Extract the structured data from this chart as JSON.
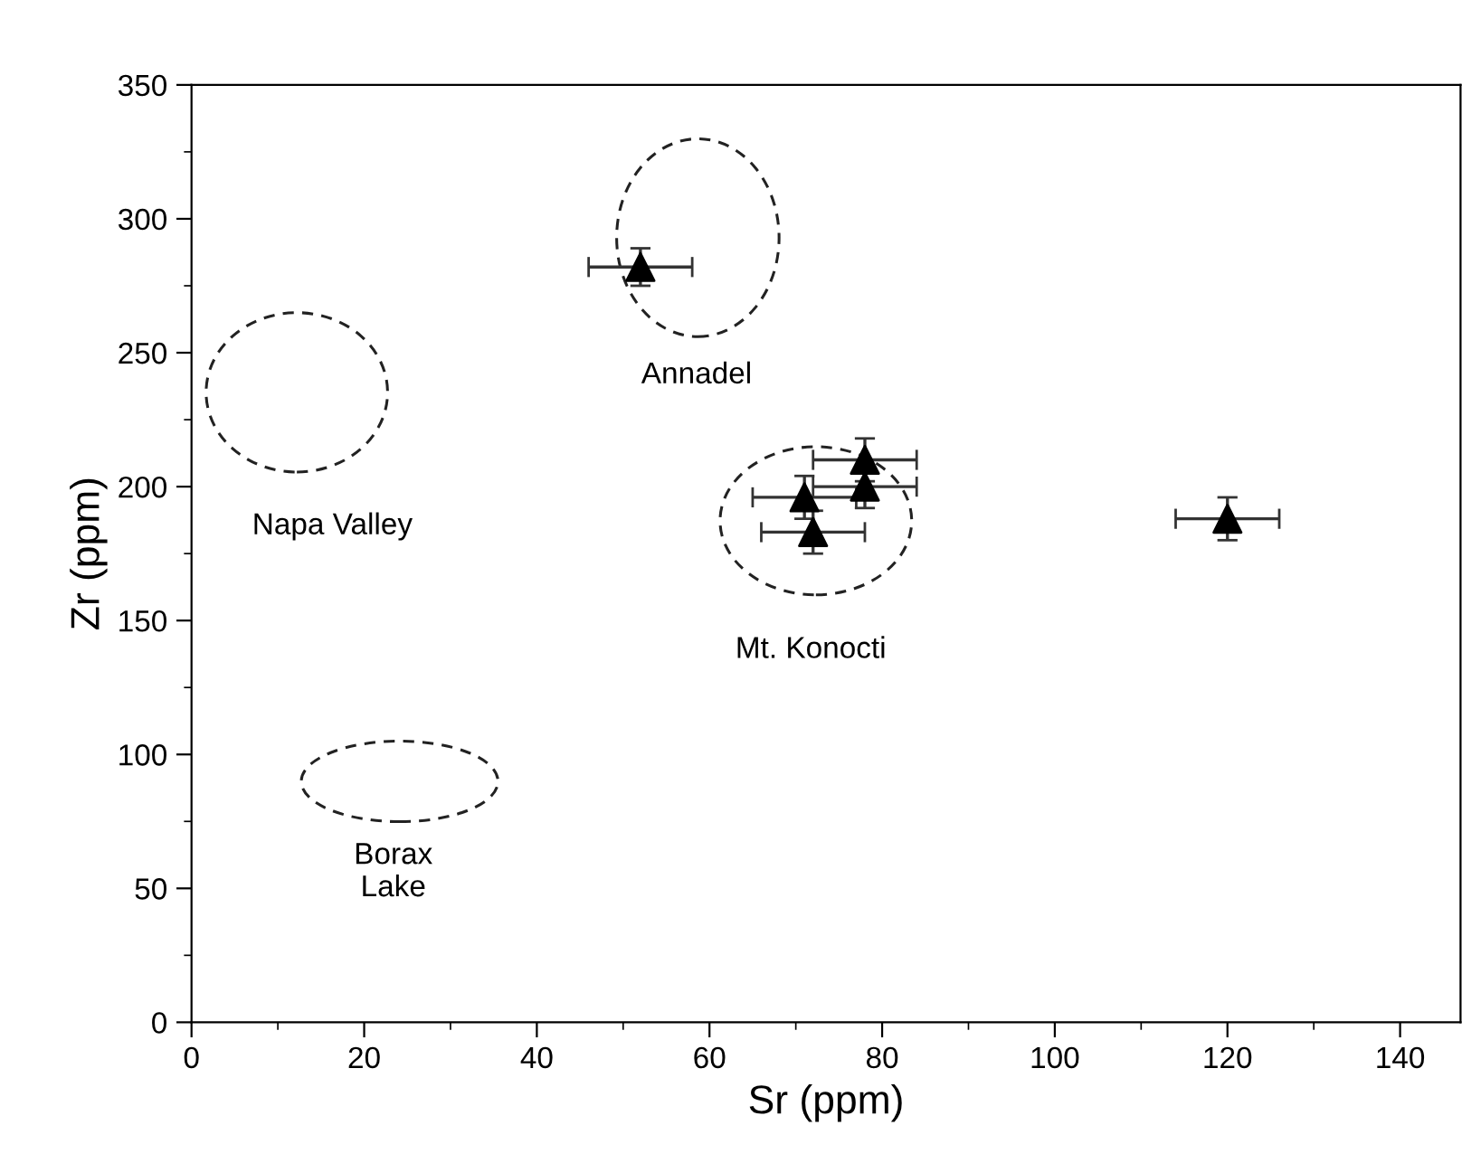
{
  "chart_data": {
    "type": "scatter",
    "xlabel": "Sr (ppm)",
    "ylabel": "Zr (ppm)",
    "xlim": [
      0,
      147
    ],
    "ylim": [
      0,
      350
    ],
    "xticks": [
      0,
      20,
      40,
      60,
      80,
      100,
      120,
      140
    ],
    "yticks": [
      0,
      50,
      100,
      150,
      200,
      250,
      300,
      350
    ],
    "marker": "triangle",
    "series": [
      {
        "color": "#000000",
        "x": [
          52,
          78,
          78,
          71,
          72,
          120
        ],
        "values": [
          282,
          210,
          200,
          196,
          183,
          188
        ],
        "errors": [
          7,
          8,
          8,
          8,
          8,
          8
        ],
        "xerrors": [
          6,
          6,
          6,
          6,
          6,
          6
        ]
      }
    ],
    "annotations": [
      "Annadel",
      "Napa Valley",
      "Mt. Konocti",
      "Borax\nLake"
    ]
  }
}
